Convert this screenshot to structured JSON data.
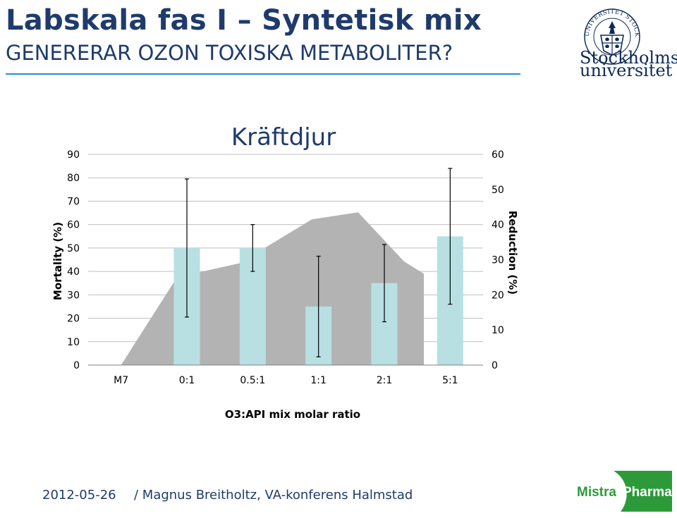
{
  "slide": {
    "title": "Labskala fas I – Syntetisk mix",
    "subtitle": "GENERERAR OZON TOXISKA METABOLITER?",
    "footer_date": "2012-05-26",
    "footer_text": "/ Magnus Breitholtz, VA-konferens Halmstad",
    "accent_color": "#1f3b6b",
    "rule_color": "#2b8fc8"
  },
  "logos": {
    "university_line1": "Stockholms",
    "university_line2": "universitet",
    "university_seal_text": "UNIVERSITET STOCKHOLMS",
    "mistra_word1": "Mistra",
    "mistra_word2": "Pharma"
  },
  "chart_data": {
    "type": "bar",
    "title": "Kräftdjur",
    "xlabel": "O3:API mix molar ratio",
    "ylabel": "Mortality (%)",
    "y2label": "Reduction (%)",
    "categories": [
      "M7",
      "0:1",
      "0.5:1",
      "1:1",
      "2:1",
      "5:1"
    ],
    "ylim": [
      0,
      90
    ],
    "yticks": [
      0,
      10,
      20,
      30,
      40,
      50,
      60,
      70,
      80,
      90
    ],
    "y2lim": [
      0,
      60
    ],
    "y2ticks": [
      0,
      10,
      20,
      30,
      40,
      50,
      60
    ],
    "grid": true,
    "legend": "none",
    "bars": {
      "axis": "left",
      "color": "#b8e0e3",
      "values": [
        null,
        50,
        50,
        25,
        35,
        55
      ],
      "error_low": [
        null,
        20.5,
        40,
        3.5,
        18.5,
        26
      ],
      "error_high": [
        null,
        79.5,
        60,
        46.5,
        51.5,
        84
      ]
    },
    "area": {
      "axis": "right",
      "color": "#b3b3b3",
      "x": [
        0.0,
        0.85,
        1.8,
        2.9,
        3.6,
        4.3,
        4.6
      ],
      "values": [
        0,
        25,
        29,
        41.5,
        43.5,
        29.5,
        26
      ]
    }
  }
}
